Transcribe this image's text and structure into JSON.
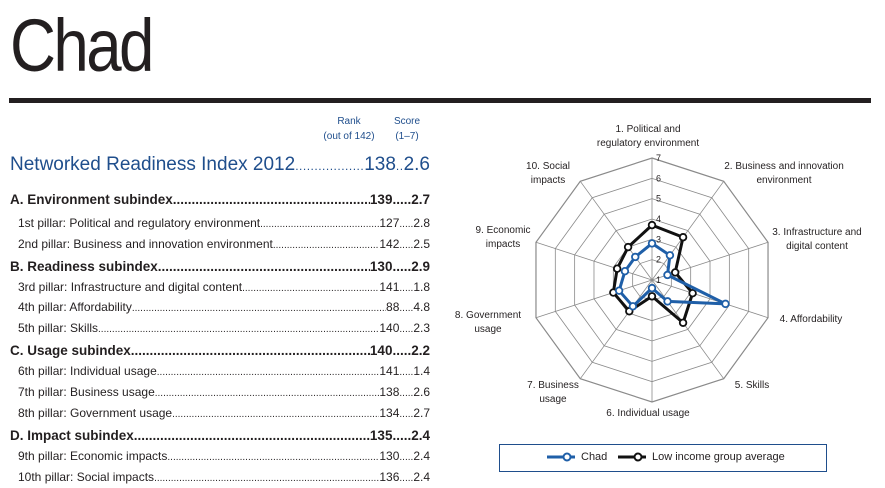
{
  "header": {
    "country": "Chad"
  },
  "columns": {
    "rank_label": "Rank",
    "rank_sub": "(out of 142)",
    "score_label": "Score",
    "score_sub": "(1–7)"
  },
  "nri": {
    "label": "Networked Readiness Index 2012",
    "rank": "138",
    "score": "2.6"
  },
  "table": [
    {
      "kind": "sub",
      "label": "A. Environment subindex",
      "rank": "139",
      "score": "2.7"
    },
    {
      "kind": "pillar",
      "label": "1st pillar: Political and regulatory environment",
      "rank": "127",
      "score": "2.8"
    },
    {
      "kind": "pillar",
      "label": "2nd pillar: Business and innovation environment",
      "rank": "142",
      "score": "2.5"
    },
    {
      "kind": "sub",
      "label": "B. Readiness subindex",
      "rank": "130",
      "score": "2.9"
    },
    {
      "kind": "pillar",
      "label": "3rd pillar: Infrastructure and digital content",
      "rank": "141",
      "score": "1.8"
    },
    {
      "kind": "pillar",
      "label": "4th pillar: Affordability",
      "rank": "88",
      "score": "4.8"
    },
    {
      "kind": "pillar",
      "label": "5th pillar: Skills",
      "rank": "140",
      "score": "2.3"
    },
    {
      "kind": "sub",
      "label": "C. Usage subindex",
      "rank": "140",
      "score": "2.2"
    },
    {
      "kind": "pillar",
      "label": "6th pillar: Individual usage",
      "rank": "141",
      "score": "1.4"
    },
    {
      "kind": "pillar",
      "label": "7th pillar: Business usage",
      "rank": "138",
      "score": "2.6"
    },
    {
      "kind": "pillar",
      "label": "8th pillar: Government usage",
      "rank": "134",
      "score": "2.7"
    },
    {
      "kind": "sub",
      "label": "D. Impact subindex",
      "rank": "135",
      "score": "2.4"
    },
    {
      "kind": "pillar",
      "label": "9th pillar: Economic impacts",
      "rank": "130",
      "score": "2.4"
    },
    {
      "kind": "pillar",
      "label": "10th pillar: Social impacts",
      "rank": "136",
      "score": "2.4"
    }
  ],
  "chart_data": {
    "type": "radar",
    "axes": [
      [
        "1. Political and",
        "regulatory environment"
      ],
      [
        "2. Business and innovation",
        "environment"
      ],
      [
        "3. Infrastructure and",
        "digital content"
      ],
      [
        "4. Affordability"
      ],
      [
        "5. Skills"
      ],
      [
        "6. Individual usage"
      ],
      [
        "7. Business",
        "usage"
      ],
      [
        "8. Government",
        "usage"
      ],
      [
        "9. Economic",
        "impacts"
      ],
      [
        "10. Social",
        "impacts"
      ]
    ],
    "range": [
      1,
      7
    ],
    "ticks": [
      "1",
      "2",
      "3",
      "4",
      "5",
      "6",
      "7"
    ],
    "series": [
      {
        "name": "Chad",
        "color": "#1f5fa8",
        "values": [
          2.8,
          2.5,
          1.8,
          4.8,
          2.3,
          1.4,
          2.6,
          2.7,
          2.4,
          2.4
        ]
      },
      {
        "name": "Low income group average",
        "color": "#111111",
        "values": [
          3.7,
          3.6,
          2.2,
          3.1,
          3.6,
          1.8,
          2.9,
          3.0,
          2.8,
          3.0
        ]
      }
    ]
  }
}
